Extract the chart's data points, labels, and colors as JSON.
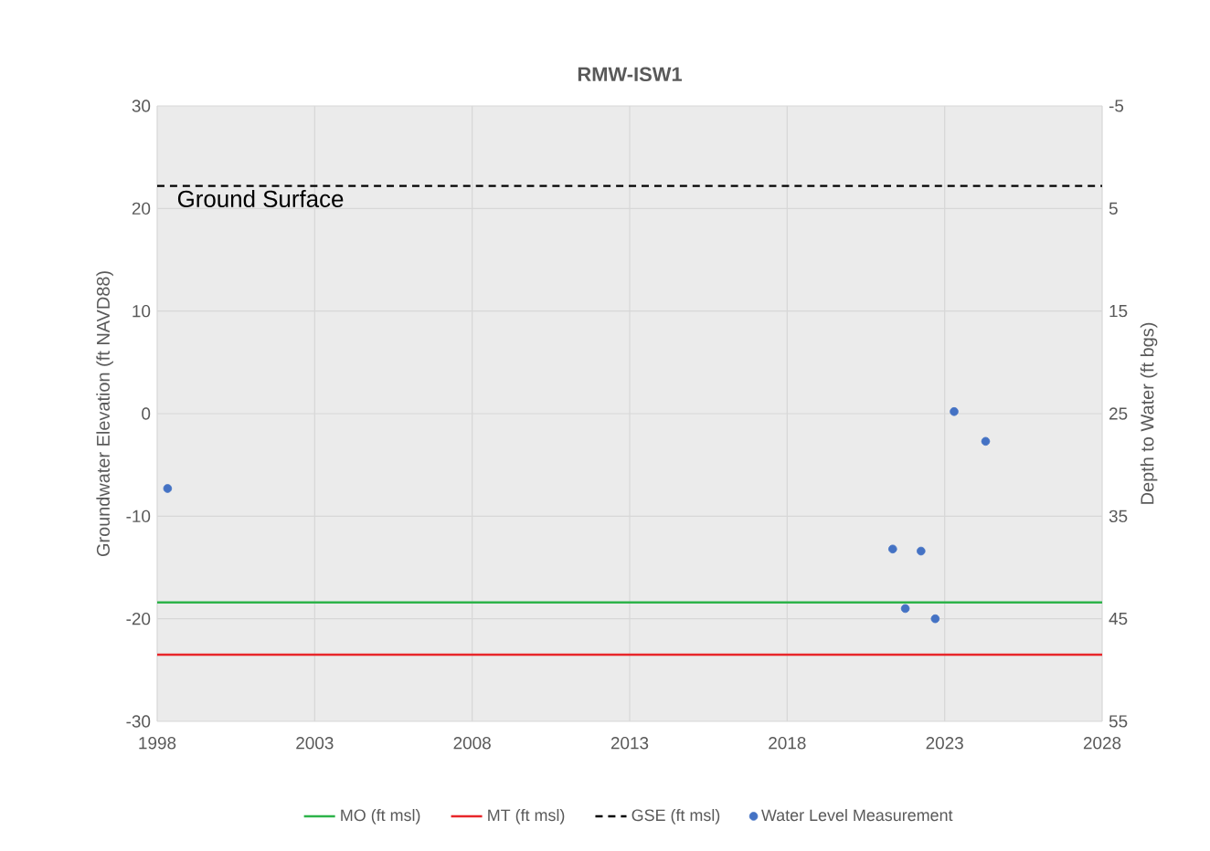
{
  "chart_data": {
    "type": "scatter",
    "title": "RMW-ISW1",
    "ylabel": "Groundwater Elevation  (ft NAVD88)",
    "y2label": "Depth to Water (ft bgs)",
    "xlim": [
      1998,
      2028
    ],
    "xticks": [
      1998,
      2003,
      2008,
      2013,
      2018,
      2023,
      2028
    ],
    "ylim": [
      -30,
      30
    ],
    "yticks": [
      -30,
      -20,
      -10,
      0,
      10,
      20,
      30
    ],
    "y2lim": [
      55,
      -5
    ],
    "y2ticks": [
      -5,
      5,
      15,
      25,
      35,
      45,
      55
    ],
    "grid": true,
    "legend": "bottom",
    "annotations": [
      {
        "text": "Ground Surface",
        "x": 1998.5,
        "y": 22.2
      }
    ],
    "series": [
      {
        "name": "MO (ft msl)",
        "type": "line",
        "color": "#2db34a",
        "x": [
          1998,
          2028
        ],
        "values": [
          -18.4,
          -18.4
        ],
        "marker": "none",
        "line_style": "solid"
      },
      {
        "name": "MT (ft msl)",
        "type": "line",
        "color": "#e8262a",
        "x": [
          1998,
          2028
        ],
        "values": [
          -23.5,
          -23.5
        ],
        "marker": "none",
        "line_style": "solid"
      },
      {
        "name": "GSE (ft msl)",
        "type": "line",
        "color": "#000000",
        "x": [
          1998,
          2028
        ],
        "values": [
          22.2,
          22.2
        ],
        "marker": "none",
        "line_style": "dashed"
      },
      {
        "name": "Water Level Measurement",
        "color": "#4472c4",
        "marker": "circle",
        "x": [
          1998.33,
          2021.35,
          2021.75,
          2022.25,
          2022.7,
          2023.3,
          2024.3
        ],
        "values": [
          -7.3,
          -13.2,
          -19.0,
          -13.4,
          -20.0,
          0.2,
          -2.7
        ]
      }
    ]
  }
}
